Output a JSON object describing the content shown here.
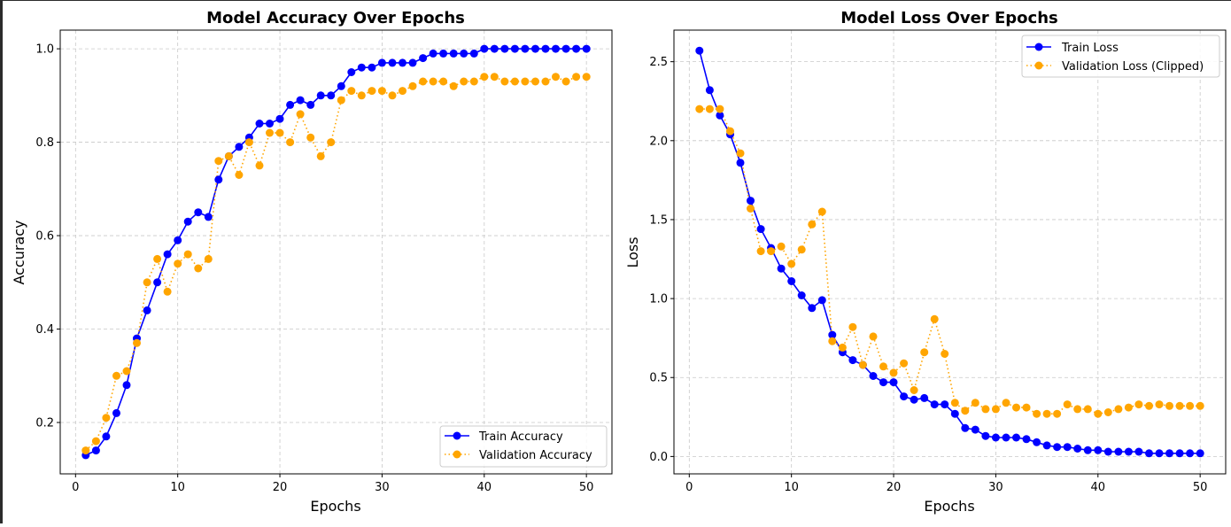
{
  "chart_data": [
    {
      "type": "line",
      "title": "Model Accuracy Over Epochs",
      "xlabel": "Epochs",
      "ylabel": "Accuracy",
      "xlim": [
        -1.5,
        52.5
      ],
      "ylim": [
        0.09,
        1.04
      ],
      "xticks": [
        0,
        10,
        20,
        30,
        40,
        50
      ],
      "yticks": [
        0.2,
        0.4,
        0.6,
        0.8,
        1.0
      ],
      "xtick_labels": [
        "0",
        "10",
        "20",
        "30",
        "40",
        "50"
      ],
      "ytick_labels": [
        "0.2",
        "0.4",
        "0.6",
        "0.8",
        "1.0"
      ],
      "grid": true,
      "legend_position": "lower-right",
      "x": [
        1,
        2,
        3,
        4,
        5,
        6,
        7,
        8,
        9,
        10,
        11,
        12,
        13,
        14,
        15,
        16,
        17,
        18,
        19,
        20,
        21,
        22,
        23,
        24,
        25,
        26,
        27,
        28,
        29,
        30,
        31,
        32,
        33,
        34,
        35,
        36,
        37,
        38,
        39,
        40,
        41,
        42,
        43,
        44,
        45,
        46,
        47,
        48,
        49,
        50
      ],
      "series": [
        {
          "name": "Train Accuracy",
          "color": "#0000ff",
          "linestyle": "solid",
          "values": [
            0.13,
            0.14,
            0.17,
            0.22,
            0.28,
            0.38,
            0.44,
            0.5,
            0.56,
            0.59,
            0.63,
            0.65,
            0.64,
            0.72,
            0.77,
            0.79,
            0.81,
            0.84,
            0.84,
            0.85,
            0.88,
            0.89,
            0.88,
            0.9,
            0.9,
            0.92,
            0.95,
            0.96,
            0.96,
            0.97,
            0.97,
            0.97,
            0.97,
            0.98,
            0.99,
            0.99,
            0.99,
            0.99,
            0.99,
            1.0,
            1.0,
            1.0,
            1.0,
            1.0,
            1.0,
            1.0,
            1.0,
            1.0,
            1.0,
            1.0
          ]
        },
        {
          "name": "Validation Accuracy",
          "color": "#ffa500",
          "linestyle": "dotted",
          "values": [
            0.14,
            0.16,
            0.21,
            0.3,
            0.31,
            0.37,
            0.5,
            0.55,
            0.48,
            0.54,
            0.56,
            0.53,
            0.55,
            0.76,
            0.77,
            0.73,
            0.8,
            0.75,
            0.82,
            0.82,
            0.8,
            0.86,
            0.81,
            0.77,
            0.8,
            0.89,
            0.91,
            0.9,
            0.91,
            0.91,
            0.9,
            0.91,
            0.92,
            0.93,
            0.93,
            0.93,
            0.92,
            0.93,
            0.93,
            0.94,
            0.94,
            0.93,
            0.93,
            0.93,
            0.93,
            0.93,
            0.94,
            0.93,
            0.94,
            0.94
          ]
        }
      ]
    },
    {
      "type": "line",
      "title": "Model Loss Over Epochs",
      "xlabel": "Epochs",
      "ylabel": "Loss",
      "xlim": [
        -1.5,
        52.5
      ],
      "ylim": [
        -0.11,
        2.7
      ],
      "xticks": [
        0,
        10,
        20,
        30,
        40,
        50
      ],
      "yticks": [
        0.0,
        0.5,
        1.0,
        1.5,
        2.0,
        2.5
      ],
      "xtick_labels": [
        "0",
        "10",
        "20",
        "30",
        "40",
        "50"
      ],
      "ytick_labels": [
        "0.0",
        "0.5",
        "1.0",
        "1.5",
        "2.0",
        "2.5"
      ],
      "grid": true,
      "legend_position": "upper-right",
      "x": [
        1,
        2,
        3,
        4,
        5,
        6,
        7,
        8,
        9,
        10,
        11,
        12,
        13,
        14,
        15,
        16,
        17,
        18,
        19,
        20,
        21,
        22,
        23,
        24,
        25,
        26,
        27,
        28,
        29,
        30,
        31,
        32,
        33,
        34,
        35,
        36,
        37,
        38,
        39,
        40,
        41,
        42,
        43,
        44,
        45,
        46,
        47,
        48,
        49,
        50
      ],
      "series": [
        {
          "name": "Train Loss",
          "color": "#0000ff",
          "linestyle": "solid",
          "values": [
            2.57,
            2.32,
            2.16,
            2.04,
            1.86,
            1.62,
            1.44,
            1.32,
            1.19,
            1.11,
            1.02,
            0.94,
            0.99,
            0.77,
            0.66,
            0.61,
            0.58,
            0.51,
            0.47,
            0.47,
            0.38,
            0.36,
            0.37,
            0.33,
            0.33,
            0.27,
            0.18,
            0.17,
            0.13,
            0.12,
            0.12,
            0.12,
            0.11,
            0.09,
            0.07,
            0.06,
            0.06,
            0.05,
            0.04,
            0.04,
            0.03,
            0.03,
            0.03,
            0.03,
            0.02,
            0.02,
            0.02,
            0.02,
            0.02,
            0.02
          ]
        },
        {
          "name": "Validation Loss (Clipped)",
          "color": "#ffa500",
          "linestyle": "dotted",
          "values": [
            2.2,
            2.2,
            2.2,
            2.06,
            1.92,
            1.57,
            1.3,
            1.3,
            1.33,
            1.22,
            1.31,
            1.47,
            1.55,
            0.73,
            0.69,
            0.82,
            0.58,
            0.76,
            0.57,
            0.53,
            0.59,
            0.42,
            0.66,
            0.87,
            0.65,
            0.34,
            0.29,
            0.34,
            0.3,
            0.3,
            0.34,
            0.31,
            0.31,
            0.27,
            0.27,
            0.27,
            0.33,
            0.3,
            0.3,
            0.27,
            0.28,
            0.3,
            0.31,
            0.33,
            0.32,
            0.33,
            0.32,
            0.32,
            0.32,
            0.32
          ]
        }
      ]
    }
  ]
}
